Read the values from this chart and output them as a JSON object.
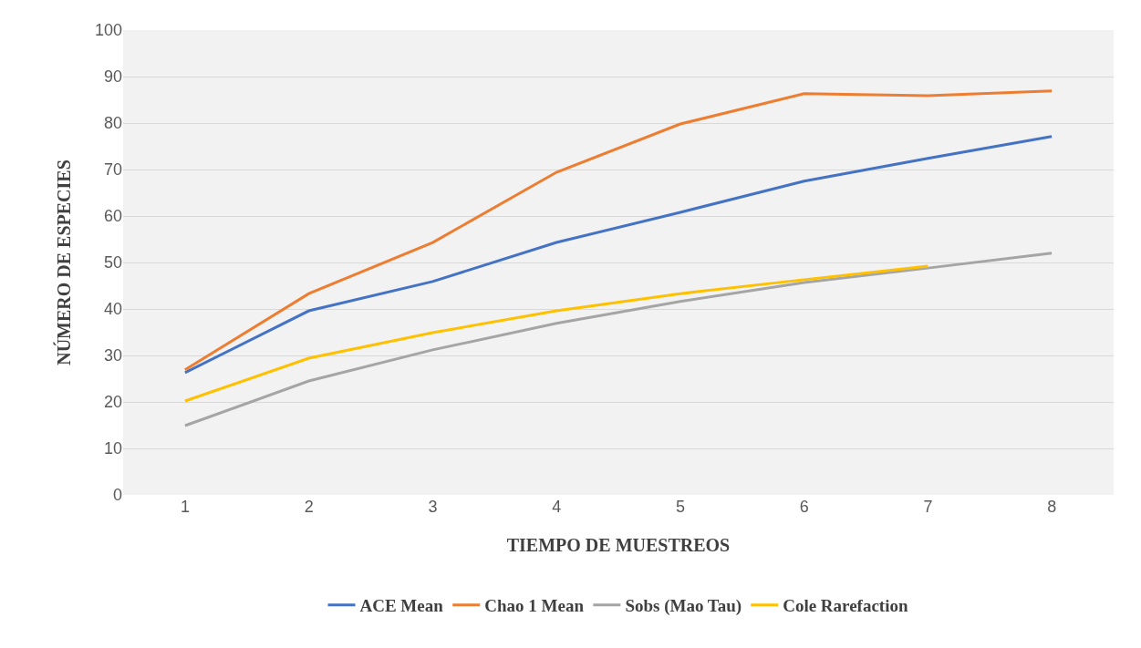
{
  "chart_data": {
    "type": "line",
    "xlabel": "TIEMPO DE MUESTREOS",
    "ylabel": "NÚMERO DE ESPECIES",
    "categories": [
      "1",
      "2",
      "3",
      "4",
      "5",
      "6",
      "7",
      "8"
    ],
    "series": [
      {
        "name": "ACE Mean",
        "color": "#4472c4",
        "values": [
          26.3,
          39.6,
          45.9,
          54.3,
          60.8,
          67.5,
          72.4,
          77.1
        ]
      },
      {
        "name": "Chao 1 Mean",
        "color": "#ed7d31",
        "values": [
          26.9,
          43.3,
          54.3,
          69.4,
          79.8,
          86.3,
          85.9,
          86.9
        ]
      },
      {
        "name": "Sobs (Mao Tau)",
        "color": "#a5a5a5",
        "values": [
          14.9,
          24.5,
          31.2,
          36.9,
          41.6,
          45.7,
          48.8,
          52.0
        ]
      },
      {
        "name": "Cole Rarefaction",
        "color": "#ffc000",
        "values": [
          20.2,
          29.4,
          34.9,
          39.6,
          43.3,
          46.3,
          49.2,
          null
        ]
      }
    ],
    "ylim": [
      0,
      100
    ],
    "yticks": [
      0,
      10,
      20,
      30,
      40,
      50,
      60,
      70,
      80,
      90,
      100
    ],
    "grid": "y",
    "legend": "bottom",
    "marker": "none",
    "line_style": "solid"
  }
}
